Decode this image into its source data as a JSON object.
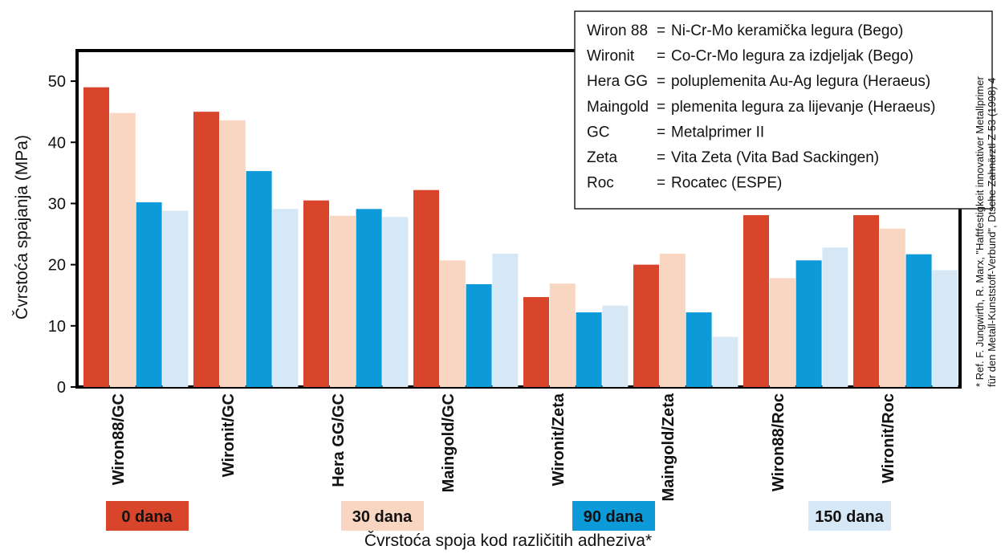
{
  "chart_data": {
    "type": "bar",
    "ylabel": "Čvrstoća spajanja (MPa)",
    "xlabel": "Čvrstoća spoja kod različitih adheziva*",
    "ylim": [
      0,
      55
    ],
    "yticks": [
      0,
      10,
      20,
      30,
      40,
      50
    ],
    "categories": [
      "Wiron88/GC",
      "Wironit/GC",
      "Hera GG/GC",
      "Maingold/GC",
      "Wironit/Zeta",
      "Maingold/Zeta",
      "Wiron88/Roc",
      "Wironit/Roc"
    ],
    "series": [
      {
        "name": "0 dana",
        "color": "#d9452b",
        "values": [
          49,
          45,
          30.5,
          32.2,
          14.7,
          20,
          28.1,
          28.1
        ]
      },
      {
        "name": "30 dana",
        "color": "#f8d6c1",
        "values": [
          44.8,
          43.6,
          28,
          20.7,
          16.9,
          21.8,
          17.8,
          25.9
        ]
      },
      {
        "name": "90 dana",
        "color": "#0d9ad8",
        "values": [
          30.2,
          35.3,
          29.1,
          16.8,
          12.2,
          12.2,
          20.7,
          21.7
        ]
      },
      {
        "name": "150 dana",
        "color": "#d6e7f5",
        "values": [
          28.8,
          29.1,
          27.8,
          21.8,
          13.3,
          8.2,
          22.8,
          19.1
        ]
      }
    ],
    "legend_box": [
      {
        "key": "Wiron 88",
        "eq": "=",
        "text": "Ni-Cr-Mo keramička legura (Bego)"
      },
      {
        "key": "Wironit",
        "eq": "=",
        "text": "Co-Cr-Mo legura za izdjeljak (Bego)"
      },
      {
        "key": "Hera GG",
        "eq": "=",
        "text": "poluplemenita Au-Ag legura (Heraeus)"
      },
      {
        "key": "Maingold",
        "eq": "=",
        "text": "plemenita legura za lijevanje (Heraeus)"
      },
      {
        "key": "GC",
        "eq": "=",
        "text": "Metalprimer II"
      },
      {
        "key": "Zeta",
        "eq": "=",
        "text": "Vita Zeta (Vita Bad Sackingen)"
      },
      {
        "key": "Roc",
        "eq": "=",
        "text": "Rocatec (ESPE)"
      }
    ],
    "reference": [
      "* Ref. F. Jungwirth, R. Marx, \"Haftfestigkeit innovativer Metallprimer",
      "für den Metall-Kunststoff-Verbund\", Dtsche Zahnärztl Z 53 (1998) 4"
    ],
    "grid": false,
    "legend_position": "bottom"
  }
}
